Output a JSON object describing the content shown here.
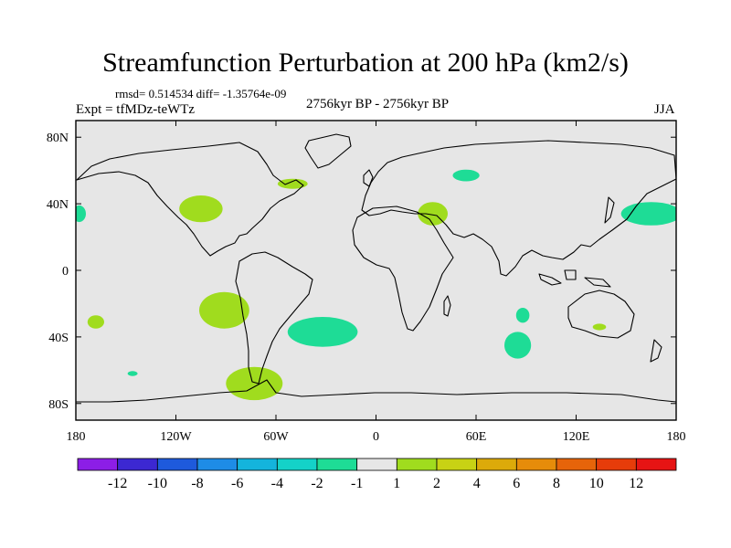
{
  "chart_data": {
    "type": "heatmap",
    "title": "Streamfunction Perturbation at 200 hPa (km2/s)",
    "stats": "rmsd= 0.514534 diff= -1.35764e-09",
    "period": "2756kyr BP - 2756kyr BP",
    "experiment": "Expt = tfMDz-teWTz",
    "season": "JJA",
    "xlim": [
      -180,
      180
    ],
    "ylim": [
      -90,
      90
    ],
    "x_ticks": [
      {
        "value": -180,
        "label": "180"
      },
      {
        "value": -120,
        "label": "120W"
      },
      {
        "value": -60,
        "label": "60W"
      },
      {
        "value": 0,
        "label": "0"
      },
      {
        "value": 60,
        "label": "60E"
      },
      {
        "value": 120,
        "label": "120E"
      },
      {
        "value": 180,
        "label": "180"
      }
    ],
    "y_ticks": [
      {
        "value": 80,
        "label": "80N"
      },
      {
        "value": 40,
        "label": "40N"
      },
      {
        "value": 0,
        "label": "0"
      },
      {
        "value": -40,
        "label": "40S"
      },
      {
        "value": -80,
        "label": "80S"
      }
    ],
    "colorbar": {
      "colors": [
        "#8c1ee6",
        "#3c28d2",
        "#1e5adc",
        "#1e8ce6",
        "#14b4dc",
        "#14d2c8",
        "#1edc96",
        "#e6e6e6",
        "#a0dc1e",
        "#c8d214",
        "#dcaa0a",
        "#e68c0a",
        "#e6640a",
        "#e63c0a",
        "#e61414"
      ],
      "labels": [
        "-12",
        "-10",
        "-8",
        "-6",
        "-4",
        "-2",
        "-1",
        "1",
        "2",
        "4",
        "6",
        "8",
        "10",
        "12"
      ]
    },
    "blobs": [
      {
        "lon": -105,
        "lat": 37,
        "rlon": 13,
        "rlat": 8,
        "value": 1.5
      },
      {
        "lon": -91,
        "lat": -24,
        "rlon": 15,
        "rlat": 11,
        "value": 1.5
      },
      {
        "lon": -73,
        "lat": -68,
        "rlon": 17,
        "rlat": 10,
        "value": 1.5
      },
      {
        "lon": -168,
        "lat": -31,
        "rlon": 5,
        "rlat": 4,
        "value": 1.5
      },
      {
        "lon": -50,
        "lat": 52,
        "rlon": 9,
        "rlat": 3,
        "value": 1.5
      },
      {
        "lon": 34,
        "lat": 34,
        "rlon": 9,
        "rlat": 7,
        "value": 1.5
      },
      {
        "lon": 134,
        "lat": -34,
        "rlon": 4,
        "rlat": 2,
        "value": 1.5
      },
      {
        "lon": -178,
        "lat": 34,
        "rlon": 4,
        "rlat": 5,
        "value": -1.5
      },
      {
        "lon": -32,
        "lat": -37,
        "rlon": 21,
        "rlat": 9,
        "value": -1.5
      },
      {
        "lon": -146,
        "lat": -62,
        "rlon": 3,
        "rlat": 1.5,
        "value": -1.5
      },
      {
        "lon": 54,
        "lat": 57,
        "rlon": 8,
        "rlat": 3.5,
        "value": -1.5
      },
      {
        "lon": 165,
        "lat": 34,
        "rlon": 18,
        "rlat": 7,
        "value": -1.5
      },
      {
        "lon": 88,
        "lat": -27,
        "rlon": 4,
        "rlat": 4.5,
        "value": -1.5
      },
      {
        "lon": 85,
        "lat": -45,
        "rlon": 8,
        "rlat": 8,
        "value": -1.5
      }
    ]
  }
}
